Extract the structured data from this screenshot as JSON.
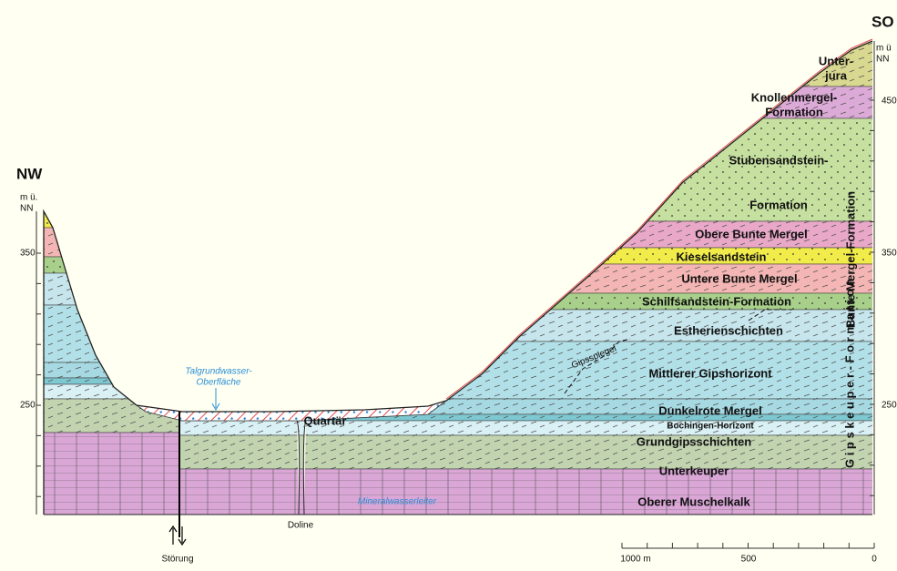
{
  "header": {
    "left": "NW",
    "right": "SO"
  },
  "axes": {
    "left": {
      "unit": [
        "m ü.",
        "NN"
      ],
      "ticks": [
        "350",
        "250"
      ]
    },
    "right": {
      "unit": [
        "m ü",
        "NN"
      ],
      "ticks": [
        "450",
        "350",
        "250"
      ]
    }
  },
  "layers": [
    {
      "label": [
        "Unter-",
        "jura"
      ]
    },
    {
      "label": [
        "Knollenmergel-",
        "Formation"
      ]
    },
    {
      "label": [
        "Stubensandstein-",
        "Formation"
      ]
    },
    {
      "label": [
        "Obere Bunte Mergel"
      ]
    },
    {
      "label": [
        "Kieselsandstein"
      ]
    },
    {
      "label": [
        "Untere Bunte Mergel"
      ]
    },
    {
      "label": [
        "Schilfsandstein-Formation"
      ]
    },
    {
      "label": [
        "Estherienschichten"
      ]
    },
    {
      "label": [
        "Mittlerer Gipshorizont"
      ]
    },
    {
      "label": [
        "Dunkelrote Mergel"
      ]
    },
    {
      "label": [
        "Bochingen-Horizont"
      ]
    },
    {
      "label": [
        "Grundgipsschichten"
      ]
    },
    {
      "label": [
        "Unterkeuper"
      ]
    },
    {
      "label": [
        "Oberer Muschelkalk"
      ]
    }
  ],
  "groups": {
    "bunte_mergel": "Bunte Mergel-Formation",
    "gipskeuper": "G i p s k e u p e r - F o r m a t i o n"
  },
  "annotations": {
    "quartaer": "Quartär",
    "groundwater": [
      "Talgrundwasser-",
      "Oberfläche"
    ],
    "gipsspiegel": "Gipsspiegel",
    "mineral": "Mineralwasserleiter",
    "doline": "Doline",
    "fault": "Störung"
  },
  "scale": {
    "labels": [
      "1000 m",
      "500",
      "0"
    ]
  }
}
